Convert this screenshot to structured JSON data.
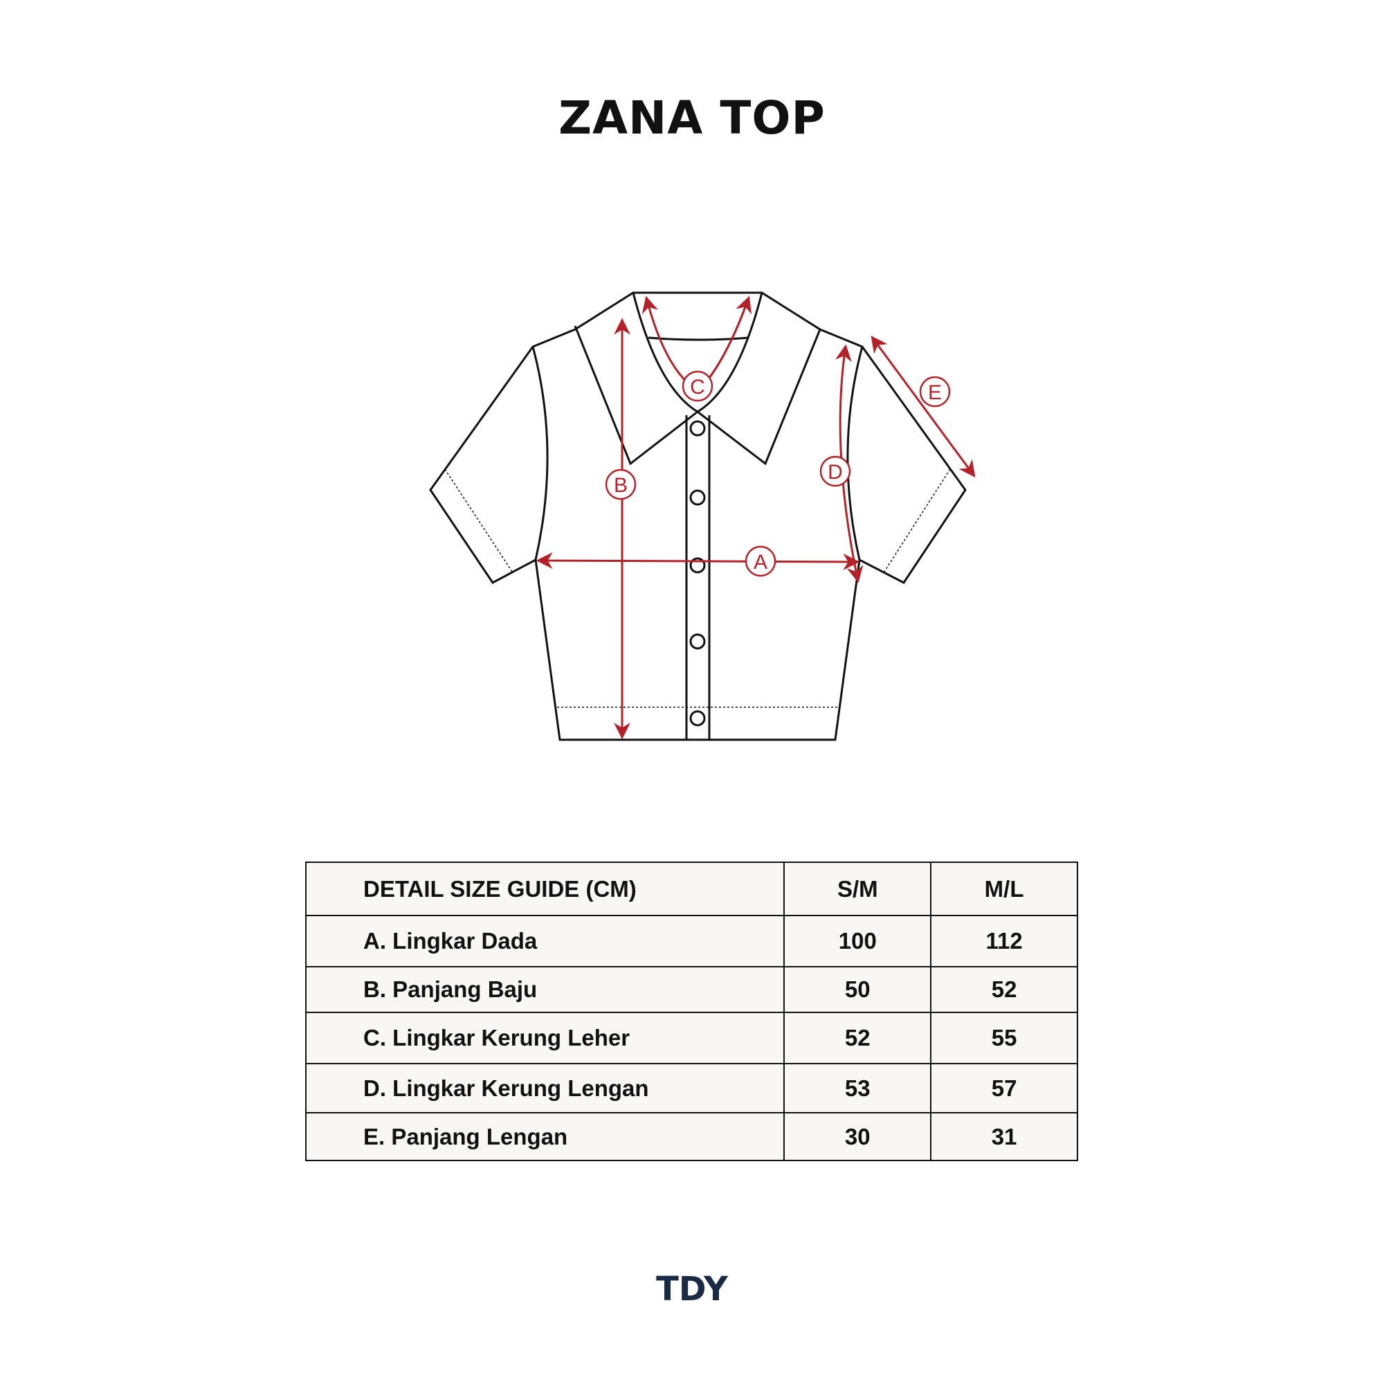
{
  "title": "ZANA TOP",
  "diagram": {
    "labels": [
      "A",
      "B",
      "C",
      "D",
      "E"
    ],
    "colors": {
      "outline": "#111111",
      "measure": "#b22228"
    }
  },
  "table": {
    "headers": [
      "DETAIL SIZE GUIDE (CM)",
      "S/M",
      "M/L"
    ],
    "rows": [
      {
        "label": "A. Lingkar Dada",
        "sm": "100",
        "ml": "112"
      },
      {
        "label": "B. Panjang Baju",
        "sm": "50",
        "ml": "52"
      },
      {
        "label": "C. Lingkar Kerung Leher",
        "sm": "52",
        "ml": "55"
      },
      {
        "label": "D. Lingkar Kerung Lengan",
        "sm": "53",
        "ml": "57"
      },
      {
        "label": "E. Panjang Lengan",
        "sm": "30",
        "ml": "31"
      }
    ]
  },
  "brand": {
    "logo": "TDY",
    "color": "#1a2a44"
  }
}
